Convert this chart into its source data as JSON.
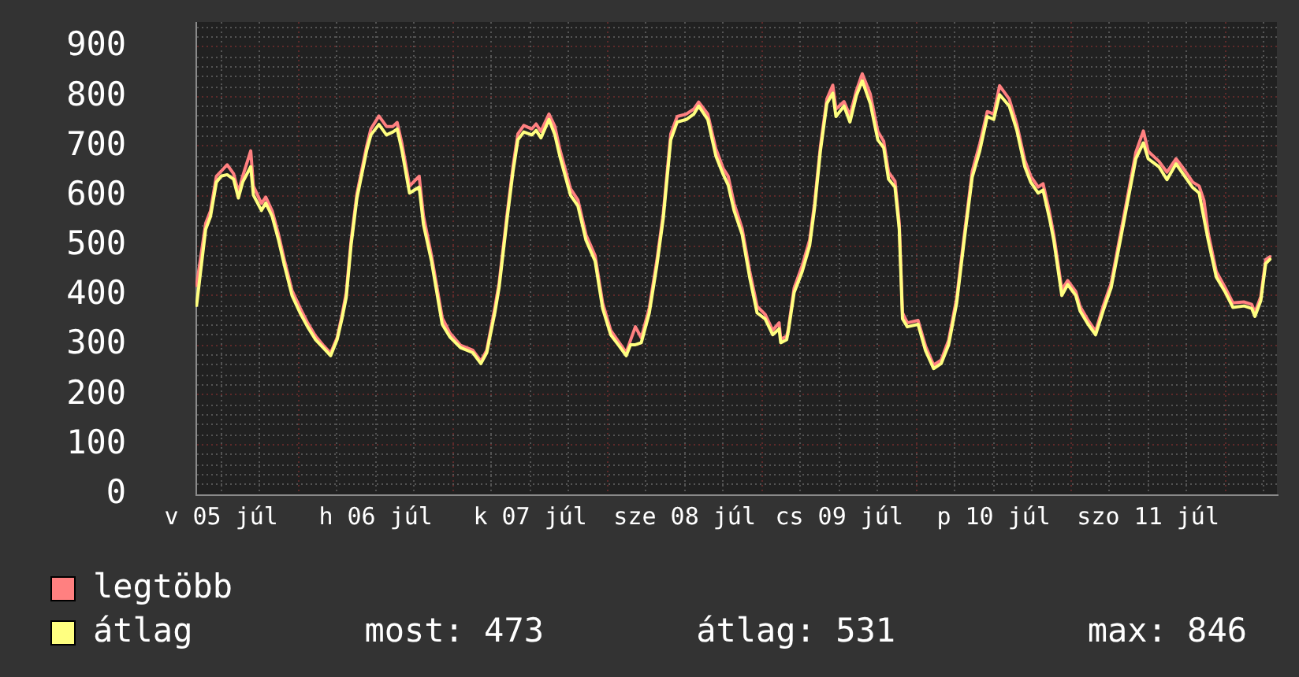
{
  "chart_data": {
    "type": "line",
    "x": [
      "--07-05T08:10",
      "--07-05T09:35",
      "--07-05T10:20",
      "--07-05T11:15",
      "--07-05T12:00",
      "--07-05T12:55",
      "--07-05T13:55",
      "--07-05T14:40",
      "--07-05T15:20",
      "--07-05T16:35",
      "--07-05T17:00",
      "--07-05T18:15",
      "--07-05T18:55",
      "--07-05T19:55",
      "--07-05T20:55",
      "--07-05T21:50",
      "--07-05T23:00",
      "--07-06T00:15",
      "--07-06T01:25",
      "--07-06T02:40",
      "--07-06T03:50",
      "--07-06T05:00",
      "--07-06T06:00",
      "--07-06T06:45",
      "--07-06T07:25",
      "--07-06T08:10",
      "--07-06T09:05",
      "--07-06T10:35",
      "--07-06T11:15",
      "--07-06T12:30",
      "--07-06T13:40",
      "--07-06T14:40",
      "--07-06T15:20",
      "--07-06T16:05",
      "--07-06T17:15",
      "--07-06T18:45",
      "--07-06T19:25",
      "--07-06T20:40",
      "--07-06T22:20",
      "--07-06T23:30",
      "--07-07T01:10",
      "--07-07T03:05",
      "--07-07T04:20",
      "--07-07T05:15",
      "--07-07T06:30",
      "--07-07T07:10",
      "--07-07T08:25",
      "--07-07T09:20",
      "--07-07T10:05",
      "--07-07T11:00",
      "--07-07T12:15",
      "--07-07T12:55",
      "--07-07T13:40",
      "--07-07T14:55",
      "--07-07T15:50",
      "--07-07T16:35",
      "--07-07T18:15",
      "--07-07T19:25",
      "--07-07T20:40",
      "--07-07T22:05",
      "--07-07T23:15",
      "--07-08T00:30",
      "--07-08T01:40",
      "--07-08T02:55",
      "--07-08T03:35",
      "--07-08T04:20",
      "--07-08T05:15",
      "--07-08T06:30",
      "--07-08T07:40",
      "--07-08T08:40",
      "--07-08T09:50",
      "--07-08T10:50",
      "--07-08T12:15",
      "--07-08T13:25",
      "--07-08T14:10",
      "--07-08T15:35",
      "--07-08T16:50",
      "--07-08T18:00",
      "--07-08T18:45",
      "--07-08T19:40",
      "--07-08T20:55",
      "--07-08T22:05",
      "--07-08T23:15",
      "--07-09T00:30",
      "--07-09T01:40",
      "--07-09T02:40",
      "--07-09T02:55",
      "--07-09T03:50",
      "--07-09T04:05",
      "--07-09T05:00",
      "--07-09T06:15",
      "--07-09T07:25",
      "--07-09T08:10",
      "--07-09T09:05",
      "--07-09T10:05",
      "--07-09T11:00",
      "--07-09T11:30",
      "--07-09T12:45",
      "--07-09T13:40",
      "--07-09T14:40",
      "--07-09T15:35",
      "--07-09T16:50",
      "--07-09T18:00",
      "--07-09T18:55",
      "--07-09T19:40",
      "--07-09T20:40",
      "--07-09T21:20",
      "--07-09T21:50",
      "--07-09T22:35",
      "--07-10T00:15",
      "--07-10T01:25",
      "--07-10T02:40",
      "--07-10T03:50",
      "--07-10T05:00",
      "--07-10T06:15",
      "--07-10T07:25",
      "--07-10T08:40",
      "--07-10T09:50",
      "--07-10T11:00",
      "--07-10T12:00",
      "--07-10T12:55",
      "--07-10T14:25",
      "--07-10T15:35",
      "--07-10T16:50",
      "--07-10T17:45",
      "--07-10T18:55",
      "--07-10T19:40",
      "--07-10T20:40",
      "--07-10T21:20",
      "--07-10T22:35",
      "--07-10T23:30",
      "--07-11T00:45",
      "--07-11T01:25",
      "--07-11T02:40",
      "--07-11T03:50",
      "--07-11T05:00",
      "--07-11T06:15",
      "--07-11T07:40",
      "--07-11T08:55",
      "--07-11T10:05",
      "--07-11T11:15",
      "--07-11T12:00",
      "--07-11T13:40",
      "--07-11T14:55",
      "--07-11T16:20",
      "--07-11T17:30",
      "--07-11T18:55",
      "--07-11T19:55",
      "--07-11T20:40",
      "--07-11T21:20",
      "--07-11T22:35",
      "--07-12T00:00",
      "--07-12T01:10",
      "--07-12T02:55",
      "--07-12T04:05",
      "--07-12T04:35",
      "--07-12T05:30",
      "--07-12T06:15",
      "--07-12T06:55"
    ],
    "series": [
      {
        "name": "legtöbb",
        "color": "#ff8080",
        "values": [
          420,
          545,
          570,
          640,
          650,
          663,
          645,
          608,
          640,
          691,
          620,
          585,
          598,
          570,
          522,
          470,
          410,
          375,
          345,
          318,
          300,
          284,
          315,
          360,
          405,
          510,
          605,
          700,
          735,
          761,
          740,
          740,
          748,
          705,
          620,
          640,
          560,
          480,
          355,
          325,
          300,
          290,
          268,
          290,
          375,
          425,
          565,
          660,
          725,
          742,
          735,
          745,
          730,
          765,
          740,
          695,
          615,
          592,
          522,
          480,
          385,
          330,
          308,
          285,
          310,
          337,
          315,
          375,
          470,
          565,
          725,
          760,
          765,
          775,
          789,
          765,
          695,
          655,
          640,
          585,
          535,
          450,
          378,
          362,
          330,
          345,
          312,
          318,
          332,
          415,
          460,
          512,
          585,
          700,
          795,
          823,
          775,
          790,
          762,
          812,
          846,
          805,
          730,
          710,
          648,
          630,
          545,
          365,
          345,
          350,
          298,
          260,
          270,
          310,
          395,
          520,
          650,
          705,
          770,
          765,
          822,
          795,
          745,
          672,
          640,
          618,
          625,
          568,
          522,
          412,
          430,
          408,
          378,
          350,
          328,
          378,
          425,
          522,
          607,
          688,
          731,
          690,
          670,
          648,
          675,
          655,
          628,
          620,
          591,
          525,
          448,
          415,
          385,
          387,
          382,
          366,
          398,
          472,
          478
        ]
      },
      {
        "name": "átlag",
        "color": "#ffff80",
        "values": [
          380,
          533,
          559,
          628,
          640,
          643,
          634,
          596,
          628,
          659,
          602,
          571,
          586,
          559,
          511,
          460,
          400,
          365,
          337,
          311,
          295,
          279,
          311,
          353,
          396,
          501,
          596,
          691,
          723,
          744,
          723,
          729,
          735,
          691,
          606,
          618,
          543,
          469,
          342,
          317,
          295,
          285,
          263,
          285,
          365,
          416,
          555,
          650,
          713,
          729,
          723,
          732,
          717,
          754,
          723,
          681,
          602,
          580,
          511,
          469,
          374,
          321,
          301,
          279,
          301,
          301,
          305,
          365,
          460,
          555,
          713,
          749,
          754,
          765,
          781,
          754,
          681,
          643,
          622,
          571,
          523,
          437,
          365,
          353,
          321,
          333,
          305,
          311,
          327,
          406,
          448,
          501,
          575,
          691,
          786,
          807,
          760,
          781,
          749,
          802,
          832,
          786,
          713,
          697,
          634,
          618,
          533,
          353,
          337,
          342,
          289,
          253,
          263,
          301,
          385,
          511,
          638,
          691,
          760,
          754,
          804,
          781,
          733,
          659,
          628,
          606,
          612,
          555,
          511,
          400,
          422,
          400,
          369,
          342,
          321,
          369,
          416,
          511,
          596,
          675,
          707,
          675,
          659,
          633,
          665,
          643,
          617,
          606,
          555,
          511,
          437,
          406,
          376,
          379,
          374,
          358,
          390,
          464,
          473
        ]
      }
    ],
    "xlim": [
      "--07-05T08:00",
      "--07-12T08:00"
    ],
    "xticks": [
      {
        "value": "--07-05T12:00",
        "label": "v 05 júl"
      },
      {
        "value": "--07-05T18:00",
        "label": null
      },
      {
        "value": "--07-06T00:00",
        "label": null
      },
      {
        "value": "--07-06T06:00",
        "label": null
      },
      {
        "value": "--07-06T12:00",
        "label": "h 06 júl"
      },
      {
        "value": "--07-06T18:00",
        "label": null
      },
      {
        "value": "--07-07T00:00",
        "label": null
      },
      {
        "value": "--07-07T06:00",
        "label": null
      },
      {
        "value": "--07-07T12:00",
        "label": "k 07 júl"
      },
      {
        "value": "--07-07T18:00",
        "label": null
      },
      {
        "value": "--07-08T00:00",
        "label": null
      },
      {
        "value": "--07-08T06:00",
        "label": null
      },
      {
        "value": "--07-08T12:00",
        "label": "sze 08 júl"
      },
      {
        "value": "--07-08T18:00",
        "label": null
      },
      {
        "value": "--07-09T00:00",
        "label": null
      },
      {
        "value": "--07-09T06:00",
        "label": null
      },
      {
        "value": "--07-09T12:00",
        "label": "cs 09 júl"
      },
      {
        "value": "--07-09T18:00",
        "label": null
      },
      {
        "value": "--07-10T00:00",
        "label": null
      },
      {
        "value": "--07-10T06:00",
        "label": null
      },
      {
        "value": "--07-10T12:00",
        "label": "p 10 júl"
      },
      {
        "value": "--07-10T18:00",
        "label": null
      },
      {
        "value": "--07-11T00:00",
        "label": null
      },
      {
        "value": "--07-11T06:00",
        "label": null
      },
      {
        "value": "--07-11T12:00",
        "label": "szo 11 júl"
      },
      {
        "value": "--07-11T18:00",
        "label": null
      },
      {
        "value": "--07-12T00:00",
        "label": null
      },
      {
        "value": "--07-12T06:00",
        "label": null
      }
    ],
    "ylim": [
      0,
      950
    ],
    "yticks": [
      0,
      {
        "value": 20,
        "label": null
      },
      {
        "value": 40,
        "label": null
      },
      {
        "value": 60,
        "label": null
      },
      {
        "value": 80,
        "label": null
      },
      100,
      {
        "value": 120,
        "label": null
      },
      {
        "value": 140,
        "label": null
      },
      {
        "value": 160,
        "label": null
      },
      {
        "value": 180,
        "label": null
      },
      200,
      {
        "value": 220,
        "label": null
      },
      {
        "value": 240,
        "label": null
      },
      {
        "value": 260,
        "label": null
      },
      {
        "value": 280,
        "label": null
      },
      300,
      {
        "value": 320,
        "label": null
      },
      {
        "value": 340,
        "label": null
      },
      {
        "value": 360,
        "label": null
      },
      {
        "value": 380,
        "label": null
      },
      400,
      {
        "value": 420,
        "label": null
      },
      {
        "value": 440,
        "label": null
      },
      {
        "value": 460,
        "label": null
      },
      {
        "value": 480,
        "label": null
      },
      500,
      {
        "value": 520,
        "label": null
      },
      {
        "value": 540,
        "label": null
      },
      {
        "value": 560,
        "label": null
      },
      {
        "value": 580,
        "label": null
      },
      600,
      {
        "value": 620,
        "label": null
      },
      {
        "value": 640,
        "label": null
      },
      {
        "value": 660,
        "label": null
      },
      {
        "value": 680,
        "label": null
      },
      700,
      {
        "value": 720,
        "label": null
      },
      {
        "value": 740,
        "label": null
      },
      {
        "value": 760,
        "label": null
      },
      {
        "value": 780,
        "label": null
      },
      800,
      {
        "value": 820,
        "label": null
      },
      {
        "value": 840,
        "label": null
      },
      {
        "value": 860,
        "label": null
      },
      {
        "value": 880,
        "label": null
      },
      900,
      {
        "value": 920,
        "label": null
      },
      {
        "value": 940,
        "label": null
      }
    ],
    "grid": true,
    "legend": "bottom left",
    "annotations": [
      "most: 473",
      "átlag: 531",
      "max: 846"
    ]
  }
}
